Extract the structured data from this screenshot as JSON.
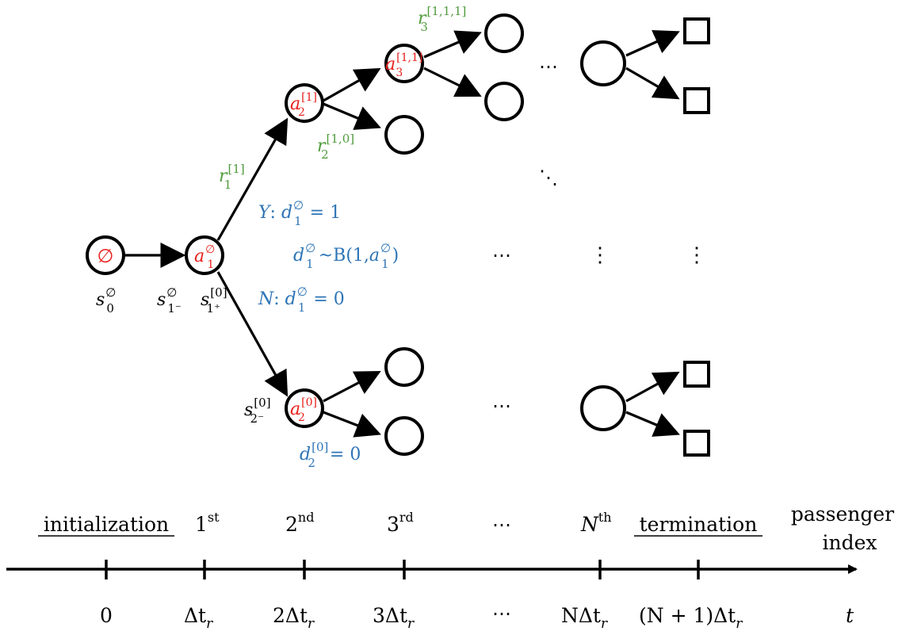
{
  "colors": {
    "action": "#e8201c",
    "reward": "#4f9b3c",
    "decision": "#2e75b6",
    "ink": "#000000"
  },
  "tree": {
    "root_label": "∅",
    "state_labels": {
      "s0": {
        "base": "s",
        "sup": "∅",
        "sub": "0"
      },
      "s1m": {
        "base": "s",
        "sup": "∅",
        "sub": "1⁻"
      },
      "s1p": {
        "base": "s",
        "sup": "[0]",
        "sub": "1⁺"
      },
      "s2m": {
        "base": "s",
        "sup": "[0]",
        "sub": "2⁻"
      }
    },
    "action_labels": {
      "a1": {
        "base": "a",
        "sup": "∅",
        "sub": "1"
      },
      "a2_1": {
        "base": "a",
        "sup": "[1]",
        "sub": "2"
      },
      "a3_11": {
        "base": "a",
        "sup": "[1,1]",
        "sub": "3"
      },
      "a2_0": {
        "base": "a",
        "sup": "[0]",
        "sub": "2"
      }
    },
    "reward_labels": {
      "r1": {
        "base": "r",
        "sup": "[1]",
        "sub": "1"
      },
      "r2": {
        "base": "r",
        "sup": "[1,0]",
        "sub": "2"
      },
      "r3": {
        "base": "r",
        "sup": "[1,1,1]",
        "sub": "3"
      }
    },
    "decisions": {
      "yes_prefix": "Y",
      "no_prefix": "N",
      "var": {
        "base": "d",
        "sup": "∅",
        "sub": "1"
      },
      "yes_value": "= 1",
      "no_value": "= 0",
      "dist_prefix": "~B(1,",
      "dist_suffix": ")",
      "d2": {
        "base": "d",
        "sup": "[0]",
        "sub": "2"
      },
      "d2_value": "= 0"
    },
    "ellipsis_h": "⋯",
    "ellipsis_v": "⋮",
    "ellipsis_d": "⋱"
  },
  "passenger_axis": {
    "initialization": "initialization",
    "first": {
      "base": "1",
      "sup": "st"
    },
    "second": {
      "base": "2",
      "sup": "nd"
    },
    "third": {
      "base": "3",
      "sup": "rd"
    },
    "dots": "⋯",
    "nth": {
      "base": "N",
      "sup": "th"
    },
    "termination": "termination",
    "label_line1": "passenger",
    "label_line2": "index"
  },
  "time_axis": {
    "t0": "0",
    "t1": "Δt",
    "t2_prefix": "2Δt",
    "t3_prefix": "3Δt",
    "dots": "⋯",
    "tN_prefix": "NΔt",
    "tN1_prefix": "(N + 1)Δt",
    "sub_r": "r",
    "label": "t"
  }
}
